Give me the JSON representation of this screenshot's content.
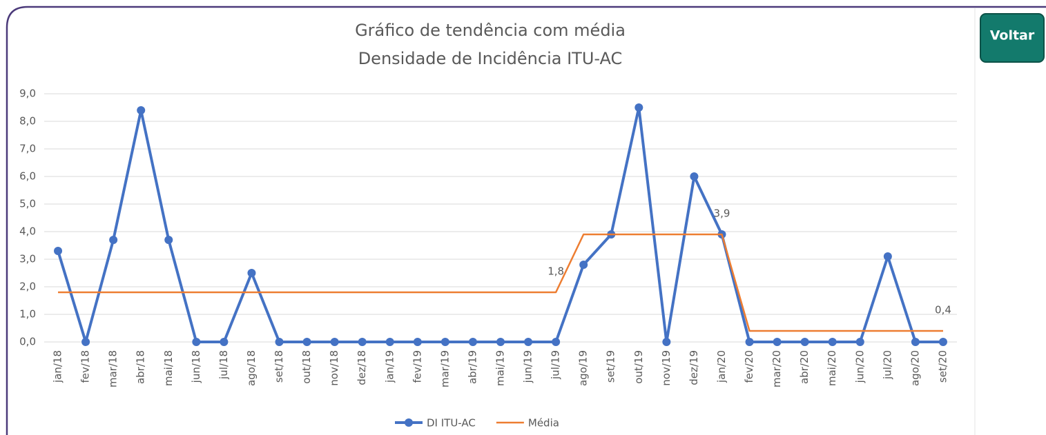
{
  "chart_data": {
    "type": "line",
    "title": "Gráfico de tendência com média",
    "subtitle": "Densidade de Incidência ITU-AC",
    "button": "Voltar",
    "categories": [
      "jan/18",
      "fev/18",
      "mar/18",
      "abr/18",
      "mai/18",
      "jun/18",
      "jul/18",
      "ago/18",
      "set/18",
      "out/18",
      "nov/18",
      "dez/18",
      "jan/19",
      "fev/19",
      "mar/19",
      "abr/19",
      "mai/19",
      "jun/19",
      "jul/19",
      "ago/19",
      "set/19",
      "out/19",
      "nov/19",
      "dez/19",
      "jan/20",
      "fev/20",
      "mar/20",
      "abr/20",
      "mai/20",
      "jun/20",
      "jul/20",
      "ago/20",
      "set/20"
    ],
    "series": [
      {
        "name": "DI ITU-AC",
        "color": "#4472c4",
        "markers": true,
        "values": [
          3.3,
          0,
          3.7,
          8.4,
          3.7,
          0,
          0,
          2.5,
          0,
          0,
          0,
          0,
          0,
          0,
          0,
          0,
          0,
          0,
          0,
          2.8,
          3.9,
          8.5,
          0,
          6.0,
          3.9,
          0,
          0,
          0,
          0,
          0,
          3.1,
          0,
          0
        ]
      },
      {
        "name": "Média",
        "color": "#ed7d31",
        "markers": false,
        "values": [
          1.8,
          1.8,
          1.8,
          1.8,
          1.8,
          1.8,
          1.8,
          1.8,
          1.8,
          1.8,
          1.8,
          1.8,
          1.8,
          1.8,
          1.8,
          1.8,
          1.8,
          1.8,
          1.8,
          3.9,
          3.9,
          3.9,
          3.9,
          3.9,
          3.9,
          0.4,
          0.4,
          0.4,
          0.4,
          0.4,
          0.4,
          0.4,
          0.4
        ],
        "value_labels": [
          null,
          null,
          null,
          null,
          null,
          null,
          null,
          null,
          null,
          null,
          null,
          null,
          null,
          null,
          null,
          null,
          null,
          null,
          "1,8",
          null,
          null,
          null,
          null,
          null,
          "3,9",
          null,
          null,
          null,
          null,
          null,
          null,
          null,
          "0,4"
        ]
      }
    ],
    "ylim": [
      0,
      9
    ],
    "yticks": [
      {
        "value": 0,
        "label": "0,0"
      },
      {
        "value": 1,
        "label": "1,0"
      },
      {
        "value": 2,
        "label": "2,0"
      },
      {
        "value": 3,
        "label": "3,0"
      },
      {
        "value": 4,
        "label": "4,0"
      },
      {
        "value": 5,
        "label": "5,0"
      },
      {
        "value": 6,
        "label": "6,0"
      },
      {
        "value": 7,
        "label": "7,0"
      },
      {
        "value": 8,
        "label": "8,0"
      },
      {
        "value": 9,
        "label": "9,0"
      }
    ],
    "grid": true,
    "legend": "bottom"
  }
}
